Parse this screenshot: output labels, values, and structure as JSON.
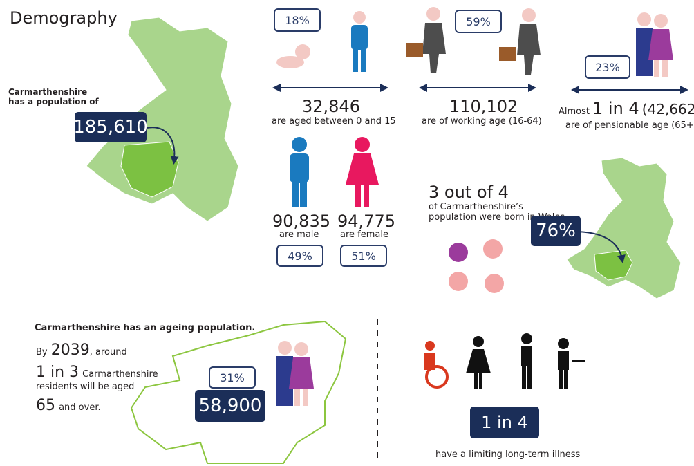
{
  "title": "Demography",
  "population": {
    "label": "Carmarthenshire has a population of",
    "value": "185,610"
  },
  "age_groups": [
    {
      "percent": "18%",
      "count": "32,846",
      "label": "are aged between 0 and 15"
    },
    {
      "percent": "59%",
      "count": "110,102",
      "label": "are of working age (16-64)"
    },
    {
      "percent": "23%",
      "prefix": "Almost",
      "ratio": "1 in 4",
      "count": "(42,662 )",
      "label": "are of pensionable age (65+)"
    }
  ],
  "gender": [
    {
      "count": "90,835",
      "label": "are male",
      "percent": "49%"
    },
    {
      "count": "94,775",
      "label": "are female",
      "percent": "51%"
    }
  ],
  "born_in_wales": {
    "ratio": "3 out of 4",
    "label": "of Carmarthenshire’s population were born in Wales",
    "percent": "76%"
  },
  "ageing": {
    "heading": "Carmarthenshire has an ageing population.",
    "by": "By",
    "year": "2039",
    "around": ", around",
    "ratio": "1 in 3",
    "place": "Carmarthenshire",
    "aged": "residents will be aged",
    "age": "65",
    "over": "and over.",
    "percent": "31%",
    "count": "58,900"
  },
  "illness": {
    "ratio": "1 in 4",
    "label": "have a limiting long-term illness"
  }
}
